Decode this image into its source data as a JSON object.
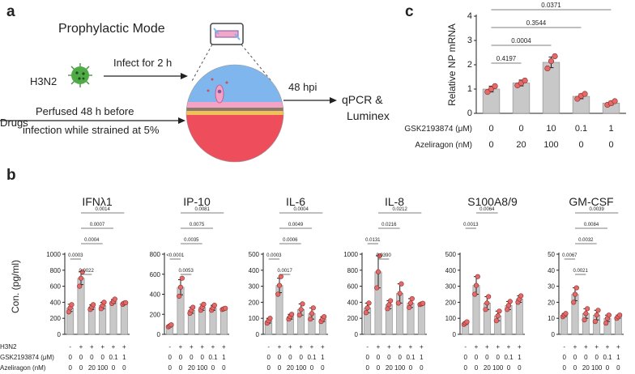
{
  "panels": {
    "a": {
      "label": "a",
      "title": "Prophylactic Mode",
      "virus": "H3N2",
      "infect": "Infect for 2 h",
      "hpi": "48 hpi",
      "readout_line1": "qPCR &",
      "readout_line2": "Luminex",
      "drugs": "Drugs",
      "perfused_line1": "Perfused 48 h before",
      "perfused_line2": "infection while strained at 5%"
    },
    "b": {
      "label": "b"
    },
    "c": {
      "label": "c"
    }
  },
  "colors": {
    "bar": "#c8c8c8",
    "point": "#e46a6a",
    "tissue_top": "#7fb6ee",
    "tissue_bottom": "#ee4d5c",
    "virus": "#4faa47"
  },
  "chart_data": [
    {
      "id": "c",
      "type": "bar",
      "ylabel": "Relative NP mRNA",
      "ylim": [
        0,
        4
      ],
      "yticks": [
        0,
        1,
        2,
        3,
        4
      ],
      "values": [
        1.0,
        1.25,
        2.1,
        0.7,
        0.42
      ],
      "errors": [
        0.12,
        0.12,
        0.22,
        0.1,
        0.08
      ],
      "points": [
        [
          0.88,
          1.0,
          1.12
        ],
        [
          1.15,
          1.25,
          1.35
        ],
        [
          1.85,
          2.15,
          2.35
        ],
        [
          0.6,
          0.72,
          0.8
        ],
        [
          0.35,
          0.42,
          0.5
        ]
      ],
      "row_labels": [
        "GSK2193874 (μM)",
        "Azeliragon (nM)"
      ],
      "rows": [
        [
          "0",
          "0",
          "10",
          "0.1",
          "1"
        ],
        [
          "0",
          "20",
          "100",
          "0",
          "0"
        ]
      ],
      "pvalues": [
        {
          "text": "0.0371",
          "from": 0,
          "to": 4
        },
        {
          "text": "0.3544",
          "from": 0,
          "to": 3
        },
        {
          "text": "0.0004",
          "from": 0,
          "to": 2
        },
        {
          "text": "0.4197",
          "from": 0,
          "to": 1
        }
      ]
    },
    {
      "id": "ifn",
      "type": "bar",
      "title": "IFNλ1",
      "ylim": [
        0,
        1000
      ],
      "yticks": [
        0,
        200,
        400,
        600,
        800,
        1000
      ],
      "values": [
        330,
        700,
        340,
        360,
        410,
        390
      ],
      "errors": [
        45,
        80,
        30,
        40,
        25,
        15
      ],
      "points": [
        [
          280,
          330,
          370
        ],
        [
          600,
          700,
          780
        ],
        [
          310,
          340,
          370
        ],
        [
          320,
          360,
          400
        ],
        [
          385,
          410,
          440
        ],
        [
          375,
          390,
          395
        ]
      ],
      "pvalues": [
        {
          "text": "0.0014",
          "from": 1,
          "to": 5
        },
        {
          "text": "0.0007",
          "from": 1,
          "to": 4
        },
        {
          "text": "0.0004",
          "from": 1,
          "to": 3
        },
        {
          "text": "0.0003",
          "from": 0,
          "to": 1
        },
        {
          "text": "0.0022",
          "from": 1,
          "to": 2
        }
      ]
    },
    {
      "id": "ip10",
      "type": "bar",
      "title": "IP-10",
      "ylim": [
        0,
        800
      ],
      "yticks": [
        0,
        200,
        400,
        600,
        800
      ],
      "values": [
        85,
        470,
        240,
        270,
        265,
        255
      ],
      "errors": [
        10,
        75,
        30,
        30,
        25,
        8
      ],
      "points": [
        [
          75,
          85,
          95
        ],
        [
          380,
          470,
          560
        ],
        [
          210,
          240,
          270
        ],
        [
          240,
          270,
          300
        ],
        [
          240,
          265,
          290
        ],
        [
          248,
          255,
          260
        ]
      ],
      "pvalues": [
        {
          "text": "0.0081",
          "from": 1,
          "to": 5
        },
        {
          "text": "0.0075",
          "from": 1,
          "to": 4
        },
        {
          "text": "0.0035",
          "from": 1,
          "to": 3
        },
        {
          "text": "<0.0001",
          "from": 0,
          "to": 1
        },
        {
          "text": "0.0053",
          "from": 1,
          "to": 2
        }
      ]
    },
    {
      "id": "il6",
      "type": "bar",
      "title": "IL-6",
      "ylim": [
        0,
        500
      ],
      "yticks": [
        0,
        100,
        200,
        300,
        400,
        500
      ],
      "values": [
        85,
        305,
        110,
        155,
        130,
        95
      ],
      "errors": [
        15,
        45,
        15,
        35,
        35,
        15
      ],
      "points": [
        [
          70,
          85,
          100
        ],
        [
          250,
          305,
          360
        ],
        [
          95,
          110,
          125
        ],
        [
          120,
          155,
          190
        ],
        [
          95,
          130,
          165
        ],
        [
          80,
          95,
          110
        ]
      ],
      "pvalues": [
        {
          "text": "0.0004",
          "from": 1,
          "to": 5
        },
        {
          "text": "0.0049",
          "from": 1,
          "to": 4
        },
        {
          "text": "0.0006",
          "from": 1,
          "to": 3
        },
        {
          "text": "0.0003",
          "from": 0,
          "to": 1
        },
        {
          "text": "0.0017",
          "from": 1,
          "to": 2
        }
      ]
    },
    {
      "id": "il8",
      "type": "bar",
      "title": "IL-8",
      "ylim": [
        0,
        1000
      ],
      "yticks": [
        0,
        200,
        400,
        600,
        800,
        1000
      ],
      "values": [
        330,
        780,
        370,
        510,
        390,
        380
      ],
      "errors": [
        60,
        200,
        50,
        120,
        55,
        10
      ],
      "points": [
        [
          270,
          330,
          390
        ],
        [
          580,
          780,
          980
        ],
        [
          320,
          370,
          420
        ],
        [
          390,
          510,
          630
        ],
        [
          335,
          390,
          445
        ],
        [
          372,
          380,
          386
        ]
      ],
      "pvalues": [
        {
          "text": "0.0212",
          "from": 1,
          "to": 5
        },
        {
          "text": "0.0216",
          "from": 1,
          "to": 3
        },
        {
          "text": "0.0131",
          "from": 0,
          "to": 1
        },
        {
          "text": "0.0390",
          "from": 1,
          "to": 2
        }
      ]
    },
    {
      "id": "s100",
      "type": "bar",
      "title": "S100A8/9",
      "ylim": [
        0,
        500
      ],
      "yticks": [
        0,
        100,
        200,
        300,
        400,
        500
      ],
      "values": [
        70,
        305,
        195,
        115,
        180,
        220
      ],
      "errors": [
        8,
        55,
        40,
        30,
        25,
        20
      ],
      "points": [
        [
          62,
          70,
          78
        ],
        [
          250,
          305,
          360
        ],
        [
          155,
          195,
          235
        ],
        [
          85,
          115,
          145
        ],
        [
          155,
          180,
          205
        ],
        [
          200,
          220,
          240
        ]
      ],
      "pvalues": [
        {
          "text": "0.0064",
          "from": 1,
          "to": 3
        },
        {
          "text": "0.0013",
          "from": 0,
          "to": 1
        }
      ]
    },
    {
      "id": "gmcsf",
      "type": "bar",
      "title": "GM-CSF",
      "ylim": [
        0,
        50
      ],
      "yticks": [
        0,
        10,
        20,
        30,
        40,
        50
      ],
      "values": [
        12,
        25,
        13,
        12,
        10,
        11
      ],
      "errors": [
        1,
        4,
        3,
        3,
        2,
        1
      ],
      "points": [
        [
          11,
          12,
          13
        ],
        [
          20,
          25,
          29
        ],
        [
          9,
          13,
          16
        ],
        [
          8,
          12,
          15
        ],
        [
          7,
          10,
          12
        ],
        [
          10,
          11,
          12
        ]
      ],
      "pvalues": [
        {
          "text": "0.0039",
          "from": 1,
          "to": 5
        },
        {
          "text": "0.0084",
          "from": 1,
          "to": 4
        },
        {
          "text": "0.0032",
          "from": 1,
          "to": 3
        },
        {
          "text": "0.0067",
          "from": 0,
          "to": 1
        },
        {
          "text": "0.0021",
          "from": 1,
          "to": 2
        }
      ]
    }
  ],
  "b_axis": {
    "ylabel": "Con. (pg/ml)",
    "row_labels": [
      "H3N2",
      "GSK2193874 (μM)",
      "Azeliragon (nM)"
    ],
    "rows": [
      [
        "-",
        "+",
        "+",
        "+",
        "+",
        "+"
      ],
      [
        "0",
        "0",
        "0",
        "0",
        "0.1",
        "1"
      ],
      [
        "0",
        "0",
        "20",
        "100",
        "0",
        "0"
      ]
    ]
  }
}
